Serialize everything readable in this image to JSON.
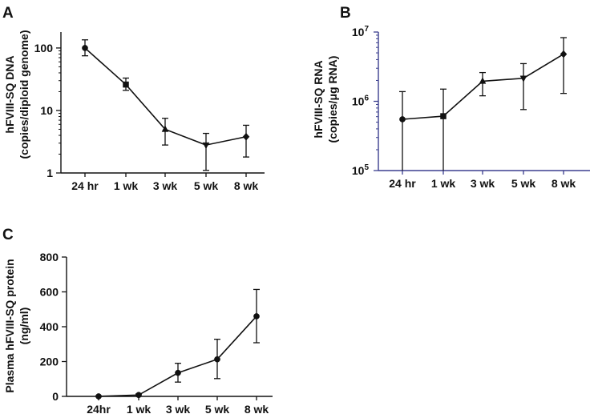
{
  "colors": {
    "ink": "#111111",
    "axis_b": "#3b3f8f"
  },
  "chart_data": [
    {
      "panel": "A",
      "type": "line",
      "categories": [
        "24 hr",
        "1 wk",
        "3 wk",
        "5 wk",
        "8 wk"
      ],
      "values": [
        100,
        26,
        5.0,
        2.8,
        3.8
      ],
      "error_low": [
        75,
        21,
        2.8,
        1.1,
        1.8
      ],
      "error_high": [
        135,
        33,
        7.5,
        4.3,
        5.8
      ],
      "markers": [
        "circle",
        "square",
        "triangle",
        "triangle-down",
        "diamond"
      ],
      "yscale": "log",
      "ylim": [
        1,
        180
      ],
      "yticks": [
        1,
        10,
        100
      ],
      "ytick_labels": [
        "1",
        "10",
        "100"
      ],
      "ylabel_line1": "hFVIII-SQ DNA",
      "ylabel_line2": "(copies/diploid genome)"
    },
    {
      "panel": "B",
      "type": "line",
      "categories": [
        "24 hr",
        "1 wk",
        "3 wk",
        "5 wk",
        "8 wk"
      ],
      "values": [
        550000,
        610000,
        1950000,
        2150000,
        4800000
      ],
      "error_low": [
        0,
        0,
        1200000,
        760000,
        1300000
      ],
      "error_high": [
        1380000,
        1500000,
        2600000,
        3500000,
        8300000
      ],
      "markers": [
        "circle",
        "square",
        "triangle",
        "triangle-down",
        "diamond"
      ],
      "yscale": "log",
      "ylim": [
        100000,
        10000000
      ],
      "ytick_bases": [
        "10",
        "10",
        "10"
      ],
      "ytick_exps": [
        "5",
        "6",
        "7"
      ],
      "ylabel_line1": "hFVIII-SQ RNA",
      "ylabel_line2": "(copies/μg RNA)"
    },
    {
      "panel": "C",
      "type": "line",
      "categories": [
        "24hr",
        "1 wk",
        "3 wk",
        "5 wk",
        "8 wk"
      ],
      "values": [
        0,
        8,
        135,
        213,
        460
      ],
      "error_low": [
        0,
        0,
        82,
        102,
        308
      ],
      "error_high": [
        3,
        14,
        190,
        328,
        614
      ],
      "markers": [
        "circle",
        "circle",
        "circle",
        "circle",
        "circle"
      ],
      "yscale": "linear",
      "ylim": [
        0,
        800
      ],
      "yticks": [
        0,
        200,
        400,
        600,
        800
      ],
      "ytick_labels": [
        "0",
        "200",
        "400",
        "600",
        "800"
      ],
      "ylabel_line1": "Plasma hFVIII-SQ protein",
      "ylabel_line2": "(ng/ml)"
    }
  ]
}
